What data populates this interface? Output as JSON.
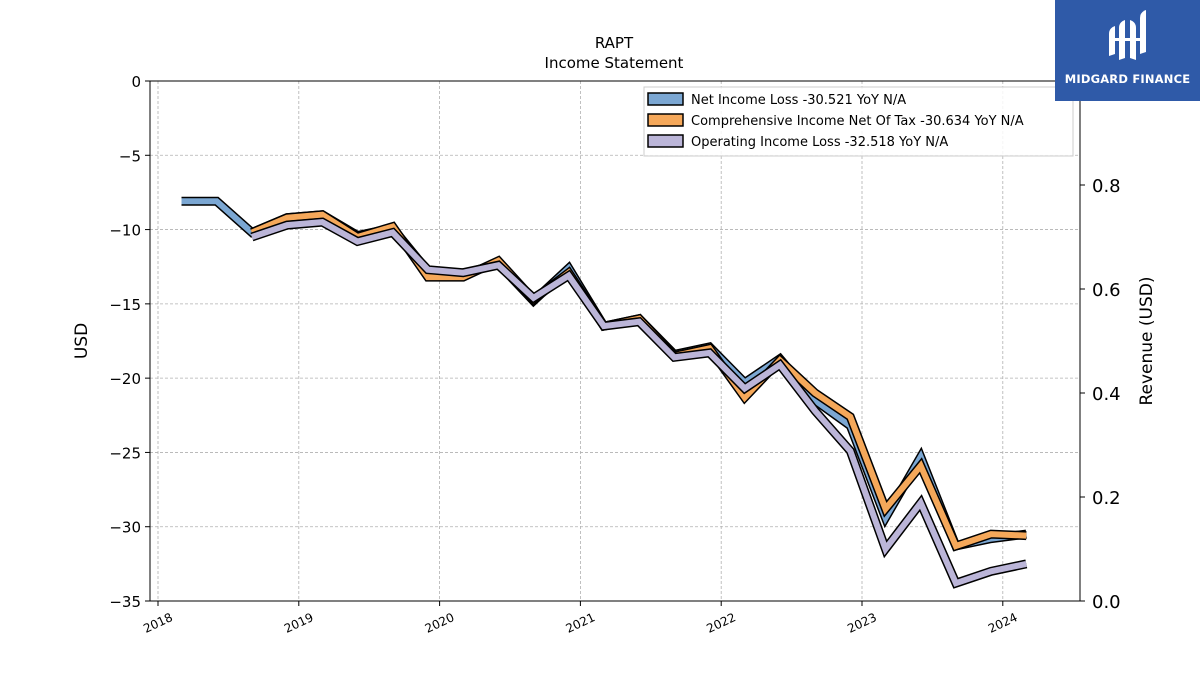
{
  "chart_data": {
    "type": "line",
    "title": "RAPT",
    "subtitle": "Income Statement",
    "ylabel": "USD",
    "ylabel_right": "Revenue (USD)",
    "ylim": [
      -35,
      0
    ],
    "ylim_right": [
      0,
      1
    ],
    "yticks": [
      0,
      -5,
      -10,
      -15,
      -20,
      -25,
      -30,
      -35
    ],
    "yticks_right": [
      0.0,
      0.2,
      0.4,
      0.6,
      0.8
    ],
    "xticks": [
      "2018",
      "2019",
      "2020",
      "2021",
      "2022",
      "2023",
      "2024"
    ],
    "x": [
      "2018-03",
      "2018-06",
      "2018-09",
      "2018-12",
      "2019-03",
      "2019-06",
      "2019-09",
      "2019-12",
      "2020-03",
      "2020-06",
      "2020-09",
      "2020-12",
      "2021-03",
      "2021-06",
      "2021-09",
      "2021-12",
      "2022-03",
      "2022-06",
      "2022-09",
      "2022-12",
      "2023-03",
      "2023-06",
      "2023-09",
      "2023-12",
      "2024-03"
    ],
    "grid": true,
    "legend_position": "top-right",
    "series": [
      {
        "name": "Net Income Loss  -30.521 YoY N/A",
        "color": "#7ba7d3",
        "values": [
          -8.1,
          -8.1,
          -10.2,
          -9.2,
          -9.0,
          -10.4,
          -9.9,
          -12.8,
          -13.0,
          -12.3,
          -14.8,
          -12.6,
          -16.5,
          -16.0,
          -18.4,
          -17.9,
          -20.3,
          -18.7,
          -21.5,
          -23.2,
          -29.4,
          -25.3,
          -31.3,
          -30.8,
          -30.5
        ]
      },
      {
        "name": "Comprehensive Income Net Of Tax  -30.634 YoY N/A",
        "color": "#f5a85a",
        "values": [
          null,
          null,
          -10.2,
          -9.2,
          -9.0,
          -10.5,
          -9.8,
          -13.2,
          -13.2,
          -12.1,
          -14.7,
          -12.9,
          -16.5,
          -16.0,
          -18.5,
          -18.0,
          -21.3,
          -18.8,
          -21.0,
          -22.6,
          -28.8,
          -25.9,
          -31.3,
          -30.5,
          -30.6
        ]
      },
      {
        "name": "Operating Income Loss  -32.518 YoY N/A",
        "color": "#bbb5d8",
        "values": [
          null,
          null,
          -10.5,
          -9.7,
          -9.5,
          -10.8,
          -10.2,
          -12.7,
          -12.9,
          -12.4,
          -14.6,
          -13.1,
          -16.5,
          -16.2,
          -18.6,
          -18.3,
          -20.7,
          -19.1,
          -22.2,
          -24.9,
          -31.5,
          -28.4,
          -33.8,
          -33.0,
          -32.5
        ]
      }
    ]
  },
  "logo": {
    "text": "MIDGARD FINANCE"
  }
}
